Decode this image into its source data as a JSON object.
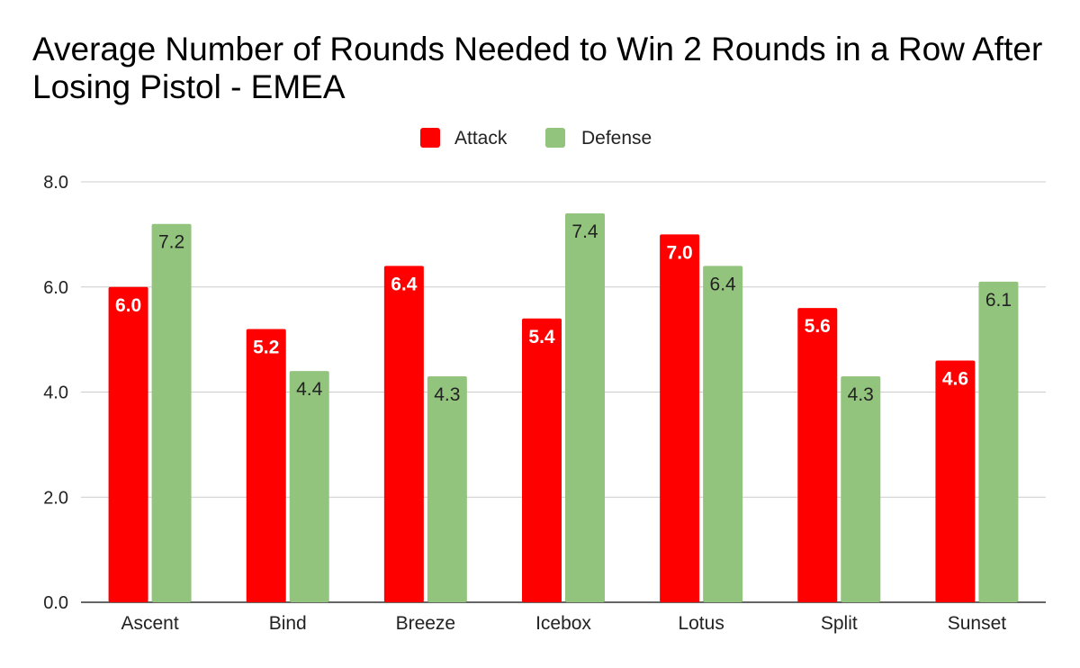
{
  "chart_data": {
    "type": "bar",
    "title": "Average Number of Rounds Needed to Win 2 Rounds in a Row After Losing Pistol - EMEA",
    "xlabel": "",
    "ylabel": "",
    "categories": [
      "Ascent",
      "Bind",
      "Breeze",
      "Icebox",
      "Lotus",
      "Split",
      "Sunset"
    ],
    "series": [
      {
        "name": "Attack",
        "color": "#ff0000",
        "values": [
          6.0,
          5.2,
          6.4,
          5.4,
          7.0,
          5.6,
          4.6
        ]
      },
      {
        "name": "Defense",
        "color": "#93c47d",
        "values": [
          7.2,
          4.4,
          4.3,
          7.4,
          6.4,
          4.3,
          6.1
        ]
      }
    ],
    "ylim": [
      0,
      8
    ],
    "yticks": [
      "0.0",
      "2.0",
      "4.0",
      "6.0",
      "8.0"
    ],
    "grid": true,
    "legend_position": "top",
    "data_labels": true
  }
}
